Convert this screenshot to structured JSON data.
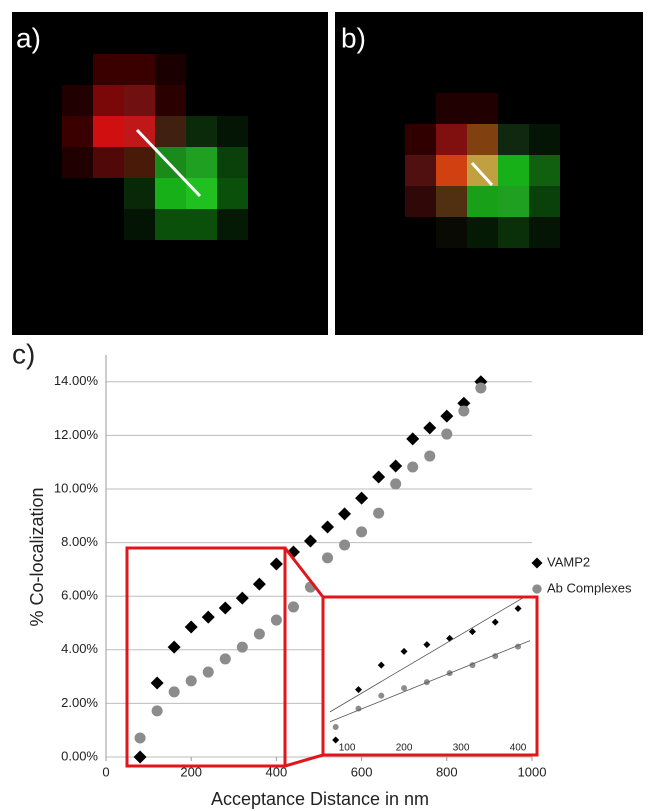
{
  "panels": [
    {
      "label": "a)"
    },
    {
      "label": "b)"
    }
  ],
  "chart_data": {
    "type": "scatter",
    "panel_label": "c)",
    "x_label": "Acceptance Distance in nm",
    "y_label": "% Co-localization",
    "x": [
      80,
      120,
      160,
      200,
      240,
      280,
      320,
      360,
      400,
      440,
      480,
      520,
      560,
      600,
      640,
      680,
      720,
      760,
      800,
      840,
      880
    ],
    "series": [
      {
        "name": "VAMP2",
        "color": "#000000",
        "marker": "diamond",
        "values": [
          0.0,
          2.76,
          4.1,
          4.85,
          5.22,
          5.56,
          5.93,
          6.45,
          7.2,
          7.65,
          8.06,
          8.58,
          9.07,
          9.66,
          10.45,
          10.86,
          11.87,
          12.28,
          12.72,
          13.2,
          14.0
        ]
      },
      {
        "name": "Ab Complexes",
        "color": "#8c8c8c",
        "marker": "circle",
        "values": [
          0.71,
          1.72,
          2.43,
          2.84,
          3.17,
          3.66,
          4.1,
          4.59,
          5.11,
          5.6,
          6.34,
          7.43,
          7.91,
          8.4,
          9.1,
          10.19,
          10.82,
          11.23,
          12.05,
          12.91,
          13.77
        ]
      }
    ],
    "xlim": [
      0,
      1000
    ],
    "xticks": [
      0,
      200,
      400,
      600,
      800,
      1000
    ],
    "ylim": [
      0,
      15
    ],
    "yticks": [
      {
        "value": 0,
        "label": "0.00%"
      },
      {
        "value": 2,
        "label": "2.00%"
      },
      {
        "value": 4,
        "label": "4.00%"
      },
      {
        "value": 6,
        "label": "6.00%"
      },
      {
        "value": 8,
        "label": "8.00%"
      },
      {
        "value": 10,
        "label": "10.00%"
      },
      {
        "value": 12,
        "label": "12.00%"
      },
      {
        "value": 14,
        "label": "14.00%"
      }
    ],
    "grid": true,
    "legend": "right",
    "inset": {
      "xlim": [
        70,
        421
      ],
      "ylim": [
        0,
        7.5
      ],
      "xticks": [
        100,
        200,
        300,
        400
      ],
      "trend_lines": true
    }
  }
}
